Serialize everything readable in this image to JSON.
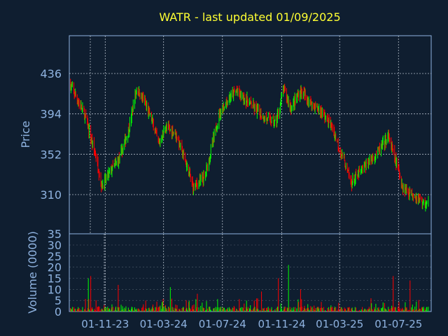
{
  "chart_data": [
    {
      "type": "candlestick",
      "title": "WATR - last updated 01/09/2025",
      "ylabel": "Price",
      "ylim": [
        268,
        442
      ],
      "yticks": [
        436,
        394,
        352,
        310
      ],
      "bottom_label": "35",
      "grid": true,
      "colors": {
        "up": "#00ff00",
        "down": "#ff0000",
        "title": "#ffff33",
        "axis_text": "#8fb3e0",
        "grid": "#cfd8e3",
        "background": "#0f1e30"
      },
      "anchors": [
        {
          "date": "2023-08-20",
          "close": 425
        },
        {
          "date": "2023-09-20",
          "close": 392
        },
        {
          "date": "2023-10-15",
          "close": 345
        },
        {
          "date": "2023-10-25",
          "close": 318
        },
        {
          "date": "2023-11-10",
          "close": 333
        },
        {
          "date": "2023-12-01",
          "close": 348
        },
        {
          "date": "2023-12-20",
          "close": 378
        },
        {
          "date": "2024-01-05",
          "close": 420
        },
        {
          "date": "2024-01-20",
          "close": 408
        },
        {
          "date": "2024-02-05",
          "close": 388
        },
        {
          "date": "2024-02-20",
          "close": 362
        },
        {
          "date": "2024-03-05",
          "close": 380
        },
        {
          "date": "2024-03-25",
          "close": 375
        },
        {
          "date": "2024-04-15",
          "close": 345
        },
        {
          "date": "2024-05-01",
          "close": 318
        },
        {
          "date": "2024-05-25",
          "close": 328
        },
        {
          "date": "2024-06-10",
          "close": 362
        },
        {
          "date": "2024-06-25",
          "close": 395
        },
        {
          "date": "2024-07-15",
          "close": 410
        },
        {
          "date": "2024-07-30",
          "close": 418
        },
        {
          "date": "2024-08-15",
          "close": 410
        },
        {
          "date": "2024-09-01",
          "close": 402
        },
        {
          "date": "2024-09-25",
          "close": 390
        },
        {
          "date": "2024-10-20",
          "close": 385
        },
        {
          "date": "2024-11-05",
          "close": 420
        },
        {
          "date": "2024-11-20",
          "close": 400
        },
        {
          "date": "2024-12-10",
          "close": 418
        },
        {
          "date": "2025-01-01",
          "close": 405
        },
        {
          "date": "2025-01-25",
          "close": 395
        },
        {
          "date": "2025-02-15",
          "close": 378
        },
        {
          "date": "2025-03-10",
          "close": 345
        },
        {
          "date": "2025-03-25",
          "close": 322
        },
        {
          "date": "2025-04-20",
          "close": 338
        },
        {
          "date": "2025-05-20",
          "close": 355
        },
        {
          "date": "2025-06-10",
          "close": 370
        },
        {
          "date": "2025-06-25",
          "close": 345
        },
        {
          "date": "2025-07-10",
          "close": 318
        },
        {
          "date": "2025-08-01",
          "close": 310
        },
        {
          "date": "2025-08-25",
          "close": 300
        },
        {
          "date": "2025-09-01",
          "close": 303
        }
      ],
      "date_range": [
        "2023-08-20",
        "2025-09-01"
      ]
    },
    {
      "type": "bar",
      "ylabel": "Volume (0000)",
      "ylim": [
        0,
        35
      ],
      "yticks": [
        30,
        25,
        20,
        15,
        10,
        5,
        0
      ],
      "xticks": [
        {
          "date": "2023-11-01",
          "label": "01-11-23"
        },
        {
          "date": "2024-03-01",
          "label": "01-03-24"
        },
        {
          "date": "2024-07-01",
          "label": "01-07-24"
        },
        {
          "date": "2024-11-01",
          "label": "01-11-24"
        },
        {
          "date": "2025-03-01",
          "label": "01-03-25"
        },
        {
          "date": "2025-07-01",
          "label": "01-07-25"
        }
      ],
      "spikes": [
        {
          "date": "2023-09-27",
          "value": 15
        },
        {
          "date": "2023-10-02",
          "value": 16
        },
        {
          "date": "2023-10-14",
          "value": 12
        },
        {
          "date": "2023-10-28",
          "value": 35
        },
        {
          "date": "2023-11-28",
          "value": 12
        },
        {
          "date": "2024-03-15",
          "value": 11
        },
        {
          "date": "2024-05-10",
          "value": 8
        },
        {
          "date": "2024-09-20",
          "value": 9
        },
        {
          "date": "2024-10-25",
          "value": 15
        },
        {
          "date": "2024-11-15",
          "value": 21
        },
        {
          "date": "2024-12-10",
          "value": 10
        },
        {
          "date": "2025-03-15",
          "value": 10
        },
        {
          "date": "2025-06-08",
          "value": 12
        },
        {
          "date": "2025-06-20",
          "value": 16
        },
        {
          "date": "2025-07-25",
          "value": 14
        }
      ]
    }
  ]
}
